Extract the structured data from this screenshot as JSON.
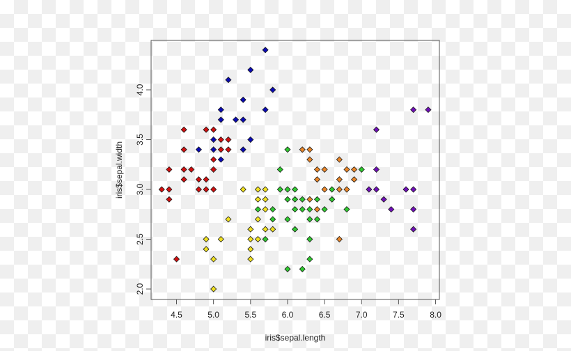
{
  "chart_data": {
    "type": "scatter",
    "title": "",
    "xlabel": "iris$sepal.length",
    "ylabel": "iris$sepal.width",
    "xlim": [
      4.3,
      7.9
    ],
    "ylim": [
      2.0,
      4.4
    ],
    "x_ticks": [
      "4.5",
      "5.0",
      "5.5",
      "6.0",
      "6.5",
      "7.0",
      "7.5",
      "8.0"
    ],
    "y_ticks": [
      "2.0",
      "2.5",
      "3.0",
      "3.5",
      "4.0"
    ],
    "grid": false,
    "marker": "diamond",
    "series": [
      {
        "name": "red",
        "color": "#d01010",
        "points": [
          [
            4.3,
            3.0
          ],
          [
            4.4,
            3.0
          ],
          [
            4.4,
            3.2
          ],
          [
            4.4,
            2.9
          ],
          [
            4.6,
            3.6
          ],
          [
            4.6,
            3.4
          ],
          [
            4.6,
            3.2
          ],
          [
            4.6,
            3.1
          ],
          [
            4.7,
            3.2
          ],
          [
            4.8,
            3.1
          ],
          [
            4.8,
            3.0
          ],
          [
            4.9,
            3.1
          ],
          [
            4.9,
            3.0
          ],
          [
            4.9,
            3.6
          ],
          [
            5.0,
            3.6
          ],
          [
            5.0,
            3.3
          ],
          [
            5.0,
            3.0
          ],
          [
            5.0,
            3.2
          ],
          [
            5.1,
            3.5
          ],
          [
            5.1,
            3.4
          ],
          [
            5.2,
            3.5
          ],
          [
            5.2,
            3.4
          ],
          [
            4.5,
            2.3
          ]
        ]
      },
      {
        "name": "blue",
        "color": "#0a0ab4",
        "points": [
          [
            5.7,
            4.4
          ],
          [
            5.5,
            4.2
          ],
          [
            5.2,
            4.1
          ],
          [
            5.8,
            4.0
          ],
          [
            5.4,
            3.9
          ],
          [
            5.1,
            3.8
          ],
          [
            5.7,
            3.8
          ],
          [
            5.1,
            3.7
          ],
          [
            5.3,
            3.7
          ],
          [
            5.4,
            3.7
          ],
          [
            5.0,
            3.5
          ],
          [
            5.5,
            3.5
          ],
          [
            4.8,
            3.4
          ],
          [
            5.0,
            3.4
          ],
          [
            5.4,
            3.4
          ],
          [
            5.1,
            3.3
          ]
        ]
      },
      {
        "name": "yellow",
        "color": "#f0e020",
        "points": [
          [
            5.4,
            3.0
          ],
          [
            5.6,
            3.0
          ],
          [
            5.7,
            3.0
          ],
          [
            5.6,
            2.9
          ],
          [
            5.7,
            2.9
          ],
          [
            5.7,
            2.8
          ],
          [
            5.2,
            2.7
          ],
          [
            5.6,
            2.7
          ],
          [
            5.5,
            2.6
          ],
          [
            5.7,
            2.6
          ],
          [
            5.8,
            2.6
          ],
          [
            4.9,
            2.5
          ],
          [
            5.1,
            2.5
          ],
          [
            5.5,
            2.5
          ],
          [
            5.6,
            2.5
          ],
          [
            4.9,
            2.4
          ],
          [
            5.5,
            2.4
          ],
          [
            5.0,
            2.3
          ],
          [
            5.5,
            2.3
          ],
          [
            5.0,
            2.0
          ]
        ]
      },
      {
        "name": "green",
        "color": "#30c830",
        "points": [
          [
            6.0,
            3.4
          ],
          [
            5.9,
            3.2
          ],
          [
            7.0,
            3.2
          ],
          [
            5.9,
            3.0
          ],
          [
            6.0,
            3.0
          ],
          [
            6.1,
            3.0
          ],
          [
            6.6,
            3.0
          ],
          [
            6.0,
            2.9
          ],
          [
            6.1,
            2.9
          ],
          [
            6.2,
            2.9
          ],
          [
            6.4,
            2.9
          ],
          [
            6.6,
            2.9
          ],
          [
            5.6,
            2.8
          ],
          [
            5.8,
            2.8
          ],
          [
            6.1,
            2.8
          ],
          [
            6.2,
            2.8
          ],
          [
            6.3,
            2.8
          ],
          [
            6.5,
            2.8
          ],
          [
            6.8,
            2.8
          ],
          [
            5.8,
            2.7
          ],
          [
            6.0,
            2.7
          ],
          [
            6.3,
            2.7
          ],
          [
            6.4,
            2.7
          ],
          [
            6.1,
            2.6
          ],
          [
            5.7,
            2.5
          ],
          [
            6.3,
            2.5
          ],
          [
            6.3,
            2.3
          ],
          [
            6.0,
            2.2
          ],
          [
            6.2,
            2.2
          ]
        ]
      },
      {
        "name": "orange",
        "color": "#e8862a",
        "points": [
          [
            6.2,
            3.4
          ],
          [
            6.3,
            3.4
          ],
          [
            6.3,
            3.3
          ],
          [
            6.7,
            3.3
          ],
          [
            6.4,
            3.2
          ],
          [
            6.5,
            3.2
          ],
          [
            6.8,
            3.2
          ],
          [
            6.9,
            3.2
          ],
          [
            6.4,
            3.1
          ],
          [
            6.7,
            3.1
          ],
          [
            6.9,
            3.1
          ],
          [
            6.5,
            3.0
          ],
          [
            6.7,
            3.0
          ],
          [
            6.8,
            3.0
          ],
          [
            6.3,
            2.9
          ],
          [
            6.4,
            2.8
          ],
          [
            6.7,
            2.5
          ]
        ]
      },
      {
        "name": "purple",
        "color": "#7010b8",
        "points": [
          [
            7.7,
            3.8
          ],
          [
            7.9,
            3.8
          ],
          [
            7.2,
            3.6
          ],
          [
            7.2,
            3.2
          ],
          [
            7.1,
            3.0
          ],
          [
            7.2,
            3.0
          ],
          [
            7.6,
            3.0
          ],
          [
            7.7,
            3.0
          ],
          [
            7.3,
            2.9
          ],
          [
            7.4,
            2.8
          ],
          [
            7.7,
            2.8
          ],
          [
            7.7,
            2.6
          ]
        ]
      }
    ]
  }
}
